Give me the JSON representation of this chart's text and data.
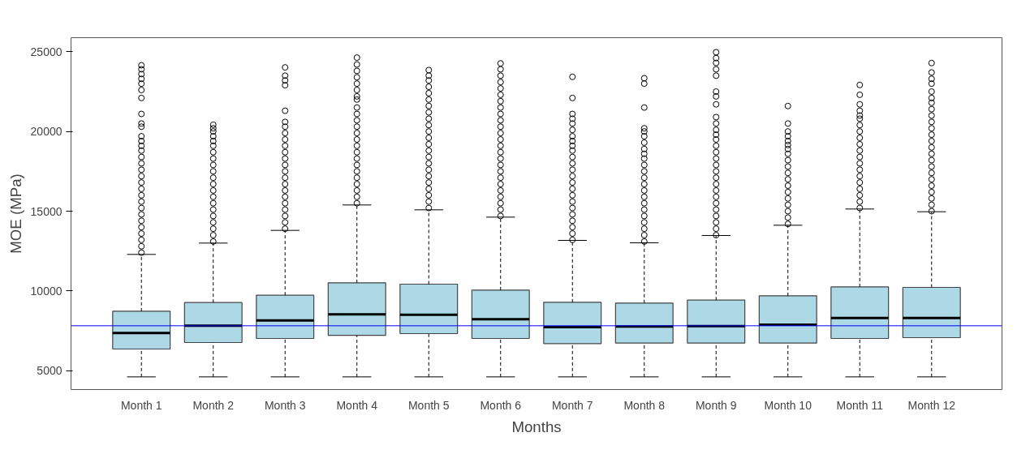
{
  "chart_data": {
    "type": "box",
    "xlabel": "Months",
    "ylabel": "MOE (MPa)",
    "categories": [
      "Month 1",
      "Month 2",
      "Month 3",
      "Month 4",
      "Month 5",
      "Month 6",
      "Month 7",
      "Month 8",
      "Month 9",
      "Month 10",
      "Month 11",
      "Month 12"
    ],
    "ylim": [
      3815,
      25880
    ],
    "yticks": [
      5000,
      10000,
      15000,
      20000,
      25000
    ],
    "grid": false,
    "ref_lines": [
      {
        "axis": "y",
        "value": 7814,
        "color": "#0000ff"
      }
    ],
    "series": [
      {
        "color": "#add8e6",
        "boxes": [
          {
            "low": 4610,
            "q1": 6356,
            "median": 7356,
            "q3": 8729,
            "high": 12289,
            "outliers": [
              12400,
              12800,
              13200,
              13600,
              14000,
              14400,
              14800,
              15200,
              15600,
              16000,
              16400,
              16800,
              17200,
              17600,
              18000,
              18400,
              18800,
              19100,
              19400,
              19700,
              20300,
              20500,
              21100,
              22100,
              22600,
              23000,
              23300,
              23600,
              23900,
              24150
            ]
          },
          {
            "low": 4610,
            "q1": 6763,
            "median": 7814,
            "q3": 9271,
            "high": 13000,
            "outliers": [
              13100,
              13500,
              13900,
              14300,
              14700,
              15100,
              15500,
              15900,
              16300,
              16700,
              17100,
              17500,
              17900,
              18300,
              18700,
              19100,
              19400,
              19700,
              20000,
              20200,
              20420
            ]
          },
          {
            "low": 4610,
            "q1": 7017,
            "median": 8153,
            "q3": 9729,
            "high": 13797,
            "outliers": [
              13900,
              14300,
              14700,
              15100,
              15500,
              15900,
              16300,
              16700,
              17100,
              17500,
              17900,
              18300,
              18700,
              19100,
              19500,
              19900,
              20300,
              20600,
              21300,
              22900,
              23200,
              23500,
              24018
            ]
          },
          {
            "low": 4610,
            "q1": 7220,
            "median": 8526,
            "q3": 10509,
            "high": 15390,
            "outliers": [
              15500,
              15900,
              16300,
              16700,
              17100,
              17500,
              17900,
              18300,
              18700,
              19100,
              19500,
              19900,
              20300,
              20700,
              21100,
              21500,
              22000,
              22200,
              22600,
              23000,
              23400,
              23800,
              24200,
              24630
            ]
          },
          {
            "low": 4610,
            "q1": 7322,
            "median": 8509,
            "q3": 10424,
            "high": 15085,
            "outliers": [
              15200,
              15600,
              16000,
              16400,
              16800,
              17200,
              17600,
              18000,
              18400,
              18800,
              19200,
              19600,
              20000,
              20400,
              20800,
              21200,
              21600,
              22000,
              22400,
              22800,
              23200,
              23500,
              23848
            ]
          },
          {
            "low": 4610,
            "q1": 7017,
            "median": 8221,
            "q3": 10051,
            "high": 14627,
            "outliers": [
              14700,
              15100,
              15500,
              15900,
              16300,
              16700,
              17100,
              17500,
              17900,
              18300,
              18700,
              19100,
              19500,
              19900,
              20300,
              20700,
              21100,
              21500,
              21900,
              22300,
              22700,
              23100,
              23500,
              23900,
              24272
            ]
          },
          {
            "low": 4610,
            "q1": 6695,
            "median": 7729,
            "q3": 9288,
            "high": 13170,
            "outliers": [
              13200,
              13600,
              14000,
              14400,
              14800,
              15200,
              15600,
              16000,
              16400,
              16800,
              17200,
              17600,
              18000,
              18400,
              18800,
              19100,
              19400,
              19700,
              20100,
              20500,
              20800,
              21100,
              22100,
              23425
            ]
          },
          {
            "low": 4610,
            "q1": 6729,
            "median": 7763,
            "q3": 9238,
            "high": 13017,
            "outliers": [
              13100,
              13500,
              13900,
              14300,
              14700,
              15100,
              15500,
              15900,
              16300,
              16700,
              17100,
              17500,
              17900,
              18300,
              18600,
              18900,
              19300,
              19700,
              20000,
              20200,
              21500,
              23000,
              23340
            ]
          },
          {
            "low": 4610,
            "q1": 6729,
            "median": 7797,
            "q3": 9424,
            "high": 13475,
            "outliers": [
              13500,
              13900,
              14300,
              14700,
              15100,
              15500,
              15900,
              16300,
              16700,
              17100,
              17500,
              17900,
              18300,
              18700,
              19100,
              19500,
              19800,
              20100,
              20500,
              20900,
              21700,
              22200,
              22500,
              23500,
              23900,
              24300,
              24600,
              24967
            ]
          },
          {
            "low": 4610,
            "q1": 6729,
            "median": 7882,
            "q3": 9695,
            "high": 14119,
            "outliers": [
              14200,
              14600,
              15000,
              15400,
              15800,
              16200,
              16600,
              17000,
              17400,
              17800,
              18200,
              18600,
              18900,
              19150,
              19400,
              19700,
              20000,
              20500,
              21594
            ]
          },
          {
            "low": 4610,
            "q1": 7017,
            "median": 8305,
            "q3": 10255,
            "high": 15136,
            "outliers": [
              15200,
              15600,
              16000,
              16400,
              16800,
              17200,
              17600,
              18000,
              18400,
              18800,
              19200,
              19600,
              20000,
              20400,
              20800,
              21000,
              21300,
              21700,
              22300,
              22916
            ]
          },
          {
            "low": 4610,
            "q1": 7068,
            "median": 8305,
            "q3": 10221,
            "high": 14966,
            "outliers": [
              15000,
              15400,
              15800,
              16200,
              16600,
              17000,
              17400,
              17800,
              18200,
              18600,
              19000,
              19400,
              19800,
              20200,
              20600,
              21000,
              21400,
              21800,
              22100,
              22500,
              23000,
              23300,
              23700,
              24289
            ]
          }
        ]
      }
    ]
  }
}
